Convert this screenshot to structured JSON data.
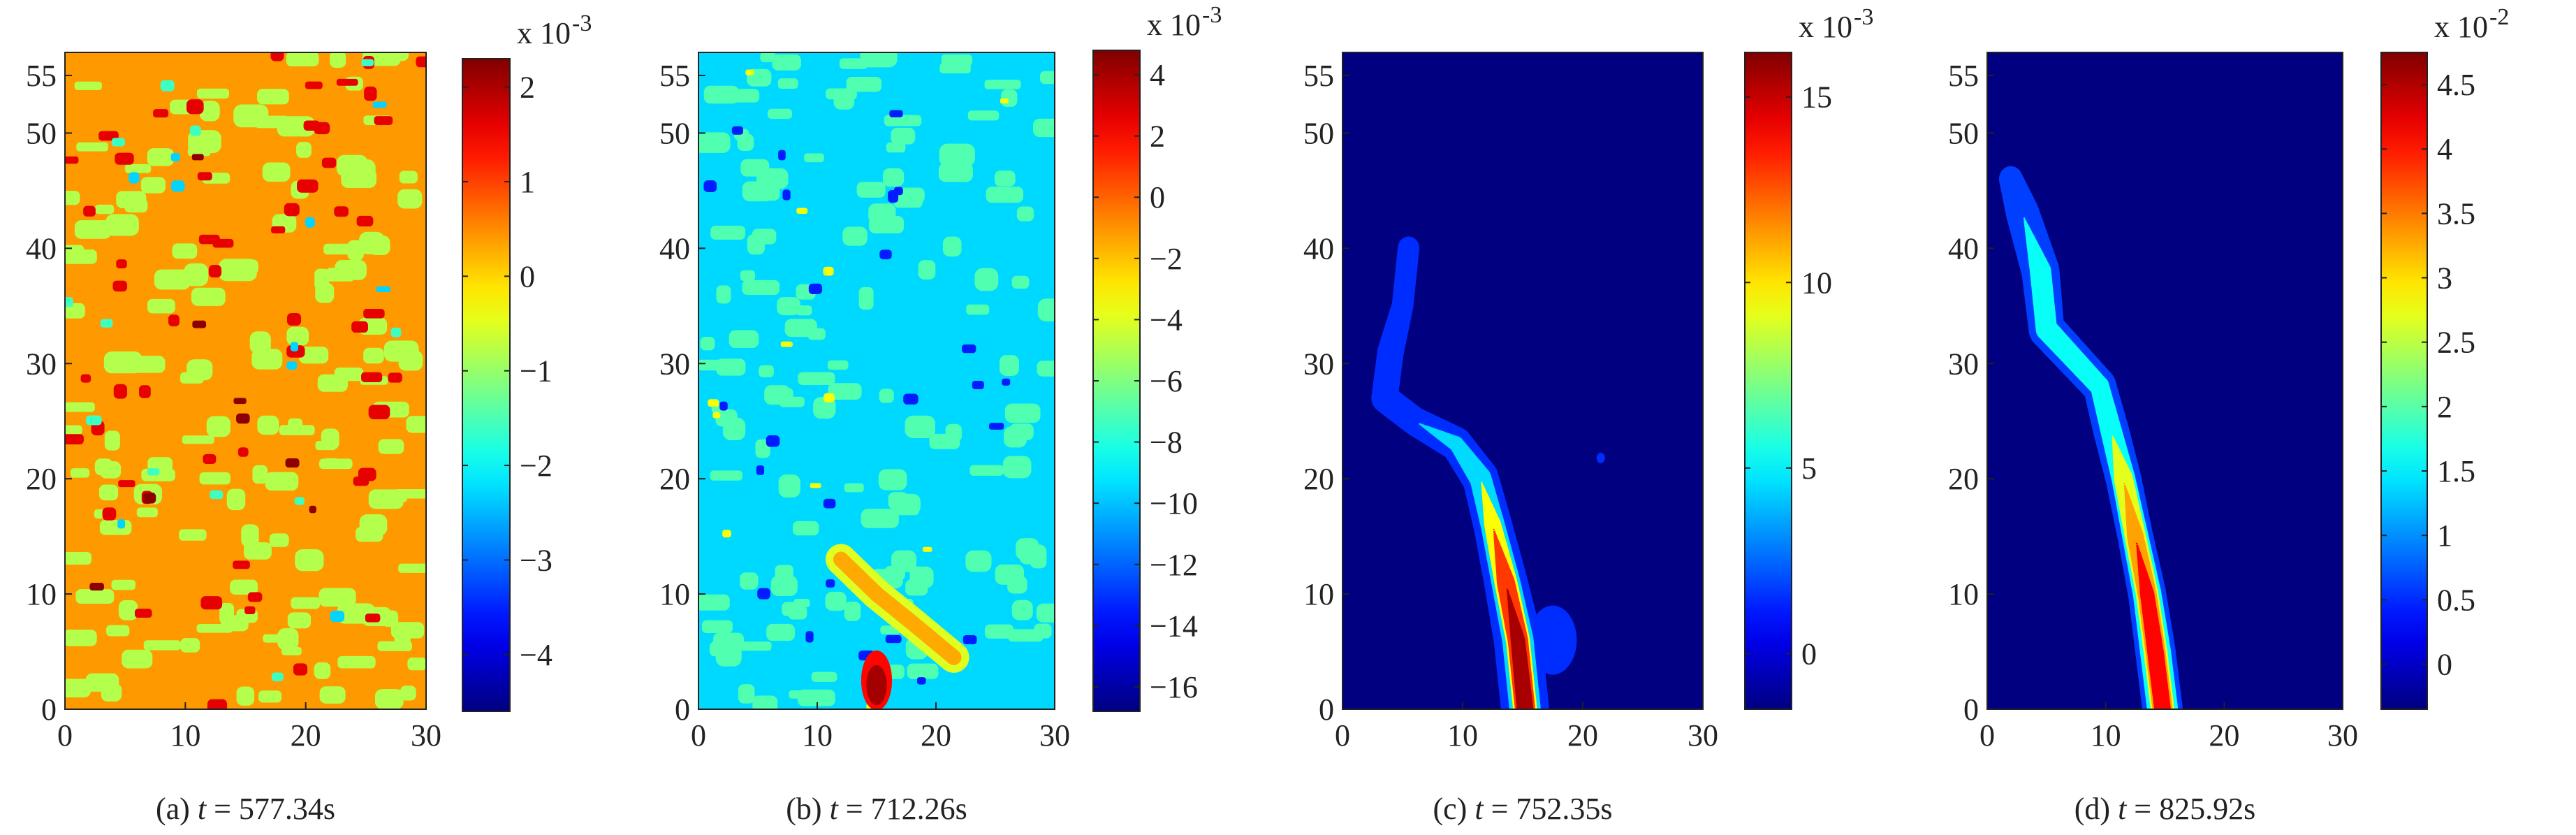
{
  "figure": {
    "type": "contour-panels",
    "background": "#ffffff",
    "colormap": "jet"
  },
  "chart_data": [
    {
      "type": "heatmap",
      "caption": {
        "prefix": "(a) ",
        "var": "t",
        "rest": " = 577.34s"
      },
      "xlim": [
        0,
        30
      ],
      "ylim": [
        0,
        57
      ],
      "x_ticks": [
        "0",
        "10",
        "20",
        "30"
      ],
      "x_tick_values": [
        0,
        10,
        20,
        30
      ],
      "y_ticks": [
        "0",
        "10",
        "20",
        "30",
        "40",
        "50",
        "55"
      ],
      "y_tick_values": [
        0,
        10,
        20,
        30,
        40,
        50,
        55
      ],
      "colorbar": {
        "multiplier": {
          "base": "x 10",
          "exp": "-3"
        },
        "range": [
          -4.6,
          2.3
        ],
        "ticks": [
          "2",
          "1",
          "0",
          "−1",
          "−2",
          "−3",
          "−4"
        ],
        "tick_values": [
          2,
          1,
          0,
          -1,
          -2,
          -3,
          -4
        ]
      },
      "field": {
        "pattern": "noise",
        "base_value": 0.4,
        "patches": [
          {
            "v": -0.8,
            "count": 150,
            "w": [
              1.2,
              3.2
            ],
            "h": [
              0.7,
              2.0
            ]
          },
          {
            "v": 1.6,
            "count": 55,
            "w": [
              0.8,
              1.8
            ],
            "h": [
              0.6,
              1.3
            ]
          },
          {
            "v": 2.2,
            "count": 8,
            "w": [
              0.6,
              1.2
            ],
            "h": [
              0.5,
              1.0
            ]
          },
          {
            "v": -2.3,
            "count": 10,
            "w": [
              0.6,
              1.2
            ],
            "h": [
              0.5,
              1.0
            ]
          },
          {
            "v": -1.6,
            "count": 12,
            "w": [
              0.8,
              1.4
            ],
            "h": [
              0.6,
              1.0
            ]
          }
        ]
      }
    },
    {
      "type": "heatmap",
      "caption": {
        "prefix": "(b) ",
        "var": "t",
        "rest": " = 712.26s"
      },
      "xlim": [
        0,
        30
      ],
      "ylim": [
        0,
        57
      ],
      "x_ticks": [
        "0",
        "10",
        "20",
        "30"
      ],
      "x_tick_values": [
        0,
        10,
        20,
        30
      ],
      "y_ticks": [
        "0",
        "10",
        "20",
        "30",
        "40",
        "50",
        "55"
      ],
      "y_tick_values": [
        0,
        10,
        20,
        30,
        40,
        50,
        55
      ],
      "colorbar": {
        "multiplier": {
          "base": "x 10",
          "exp": "-3"
        },
        "range": [
          -16.8,
          4.8
        ],
        "ticks": [
          "4",
          "2",
          "0",
          "−2",
          "−4",
          "−6",
          "−8",
          "−10",
          "−12",
          "−14",
          "−16"
        ],
        "tick_values": [
          4,
          2,
          0,
          -2,
          -4,
          -6,
          -8,
          -10,
          -12,
          -14,
          -16
        ]
      },
      "field": {
        "pattern": "noise",
        "base_value": -9.5,
        "patches": [
          {
            "v": -7.0,
            "count": 140,
            "w": [
              1.2,
              3.2
            ],
            "h": [
              0.7,
              2.0
            ]
          },
          {
            "v": -13.5,
            "count": 26,
            "w": [
              0.6,
              1.4
            ],
            "h": [
              0.5,
              1.1
            ]
          },
          {
            "v": -3.5,
            "count": 12,
            "w": [
              0.6,
              1.1
            ],
            "h": [
              0.4,
              0.8
            ]
          }
        ],
        "band": {
          "points": [
            [
              12,
              13
            ],
            [
              15,
              10
            ],
            [
              18,
              7.5
            ],
            [
              21.5,
              4.5
            ]
          ],
          "levels": [
            {
              "v": -4,
              "r": 1.3
            },
            {
              "v": -1.5,
              "r": 0.65
            }
          ]
        },
        "spot": {
          "x": 15,
          "y": 2.5,
          "w": 2.6,
          "h": 5.2,
          "v": 4.0
        }
      }
    },
    {
      "type": "heatmap",
      "caption": {
        "prefix": "(c) ",
        "var": "t",
        "rest": " = 752.35s"
      },
      "xlim": [
        0,
        30
      ],
      "ylim": [
        0,
        57
      ],
      "x_ticks": [
        "0",
        "10",
        "20",
        "30"
      ],
      "x_tick_values": [
        0,
        10,
        20,
        30
      ],
      "y_ticks": [
        "0",
        "10",
        "20",
        "30",
        "40",
        "50",
        "55"
      ],
      "y_tick_values": [
        0,
        10,
        20,
        30,
        40,
        50,
        55
      ],
      "colorbar": {
        "multiplier": {
          "base": "x 10",
          "exp": "-3"
        },
        "range": [
          -1.5,
          16.2
        ],
        "ticks": [
          "15",
          "10",
          "5",
          "0"
        ],
        "tick_values": [
          15,
          10,
          5,
          0
        ]
      },
      "field": {
        "pattern": "band",
        "background_value": -1.5,
        "band": {
          "points": [
            [
              15.2,
              0
            ],
            [
              14.6,
              6
            ],
            [
              13.6,
              11
            ],
            [
              12.5,
              16
            ],
            [
              11.5,
              20
            ],
            [
              9.5,
              23
            ],
            [
              6,
              25
            ],
            [
              3.5,
              27
            ],
            [
              4,
              31
            ],
            [
              5,
              35
            ],
            [
              5.5,
              40
            ]
          ],
          "levels": [
            {
              "v": 1.5,
              "r": [
                2.0,
                2.0,
                1.8,
                1.6,
                1.5,
                1.3,
                1.1,
                1.1,
                1.1,
                0.9,
                0.9
              ]
            },
            {
              "v": 4.5,
              "r": [
                1.3,
                1.3,
                1.2,
                1.0,
                0.9,
                0.6,
                0.0,
                0.0,
                0.0,
                0.0,
                0.0
              ]
            },
            {
              "v": 9.5,
              "r": [
                1.0,
                1.0,
                0.95,
                0.7,
                0.0,
                0.0,
                0.0,
                0.0,
                0.0,
                0.0,
                0.0
              ]
            },
            {
              "v": 13.0,
              "r": [
                0.85,
                0.85,
                0.75,
                0.0,
                0.0,
                0.0,
                0.0,
                0.0,
                0.0,
                0.0,
                0.0
              ]
            },
            {
              "v": 15.5,
              "r": [
                0.7,
                0.6,
                0.0,
                0.0,
                0.0,
                0.0,
                0.0,
                0.0,
                0.0,
                0.0,
                0.0
              ]
            }
          ]
        },
        "extras": [
          {
            "x": 17.5,
            "y": 6,
            "w": 4,
            "h": 6,
            "v": 1.5
          },
          {
            "x": 21.5,
            "y": 21.8,
            "w": 0.7,
            "h": 0.9,
            "v": 1.5
          }
        ]
      }
    },
    {
      "type": "heatmap",
      "caption": {
        "prefix": "(d) ",
        "var": "t",
        "rest": " = 825.92s"
      },
      "xlim": [
        0,
        30
      ],
      "ylim": [
        0,
        57
      ],
      "x_ticks": [
        "0",
        "10",
        "20",
        "30"
      ],
      "x_tick_values": [
        0,
        10,
        20,
        30
      ],
      "y_ticks": [
        "0",
        "10",
        "20",
        "30",
        "40",
        "50",
        "55"
      ],
      "y_tick_values": [
        0,
        10,
        20,
        30,
        40,
        50,
        55
      ],
      "colorbar": {
        "multiplier": {
          "base": "x 10",
          "exp": "-2"
        },
        "range": [
          -0.35,
          4.75
        ],
        "ticks": [
          "4.5",
          "4",
          "3.5",
          "3",
          "2.5",
          "2",
          "1.5",
          "1",
          "0.5",
          "0"
        ],
        "tick_values": [
          4.5,
          4,
          3.5,
          3,
          2.5,
          2,
          1.5,
          1,
          0.5,
          0
        ]
      },
      "field": {
        "pattern": "band",
        "background_value": -0.35,
        "band": {
          "points": [
            [
              14.8,
              0
            ],
            [
              14.2,
              5
            ],
            [
              13.5,
              10
            ],
            [
              12.5,
              15
            ],
            [
              11.5,
              20
            ],
            [
              10.5,
              24
            ],
            [
              9.5,
              28
            ],
            [
              5,
              33
            ],
            [
              4.5,
              38
            ],
            [
              3,
              43
            ],
            [
              2,
              46
            ]
          ],
          "levels": [
            {
              "v": 0.6,
              "r": [
                1.7,
                1.7,
                1.6,
                1.5,
                1.5,
                1.5,
                1.4,
                1.5,
                1.6,
                1.4,
                1.0
              ]
            },
            {
              "v": 1.6,
              "r": [
                1.3,
                1.3,
                1.2,
                1.1,
                1.0,
                0.9,
                0.8,
                0.9,
                0.9,
                0.0,
                0.0
              ]
            },
            {
              "v": 2.7,
              "r": [
                1.0,
                1.0,
                0.95,
                0.9,
                0.8,
                0.0,
                0.0,
                0.0,
                0.0,
                0.0,
                0.0
              ]
            },
            {
              "v": 3.3,
              "r": [
                0.85,
                0.85,
                0.8,
                0.7,
                0.0,
                0.0,
                0.0,
                0.0,
                0.0,
                0.0,
                0.0
              ]
            },
            {
              "v": 4.1,
              "r": [
                0.7,
                0.7,
                0.6,
                0.0,
                0.0,
                0.0,
                0.0,
                0.0,
                0.0,
                0.0,
                0.0
              ]
            }
          ]
        }
      }
    }
  ]
}
